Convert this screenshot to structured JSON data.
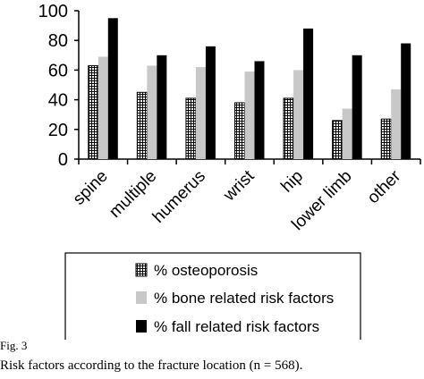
{
  "chart_data": {
    "type": "bar",
    "categories": [
      "spine",
      "multiple",
      "humerus",
      "wrist",
      "hip",
      "lower limb",
      "other"
    ],
    "series": [
      {
        "name": "% osteoporosis",
        "values": [
          63,
          45,
          41,
          38,
          41,
          26,
          27
        ],
        "color": "#ffffff",
        "pattern": "grid"
      },
      {
        "name": "% bone related risk factors",
        "values": [
          69,
          63,
          62,
          59,
          60,
          34,
          47
        ],
        "color": "#c8c8c8"
      },
      {
        "name": "% fall related risk factors",
        "values": [
          95,
          70,
          76,
          66,
          88,
          70,
          78
        ],
        "color": "#000000"
      }
    ],
    "ylim": [
      0,
      100
    ],
    "yticks": [
      "0",
      "20",
      "40",
      "60",
      "80",
      "100"
    ],
    "grid": false,
    "legend": "bottom"
  },
  "figure": {
    "label": "Fig. 3",
    "caption": "Risk factors according to the fracture location (n = 568)."
  }
}
